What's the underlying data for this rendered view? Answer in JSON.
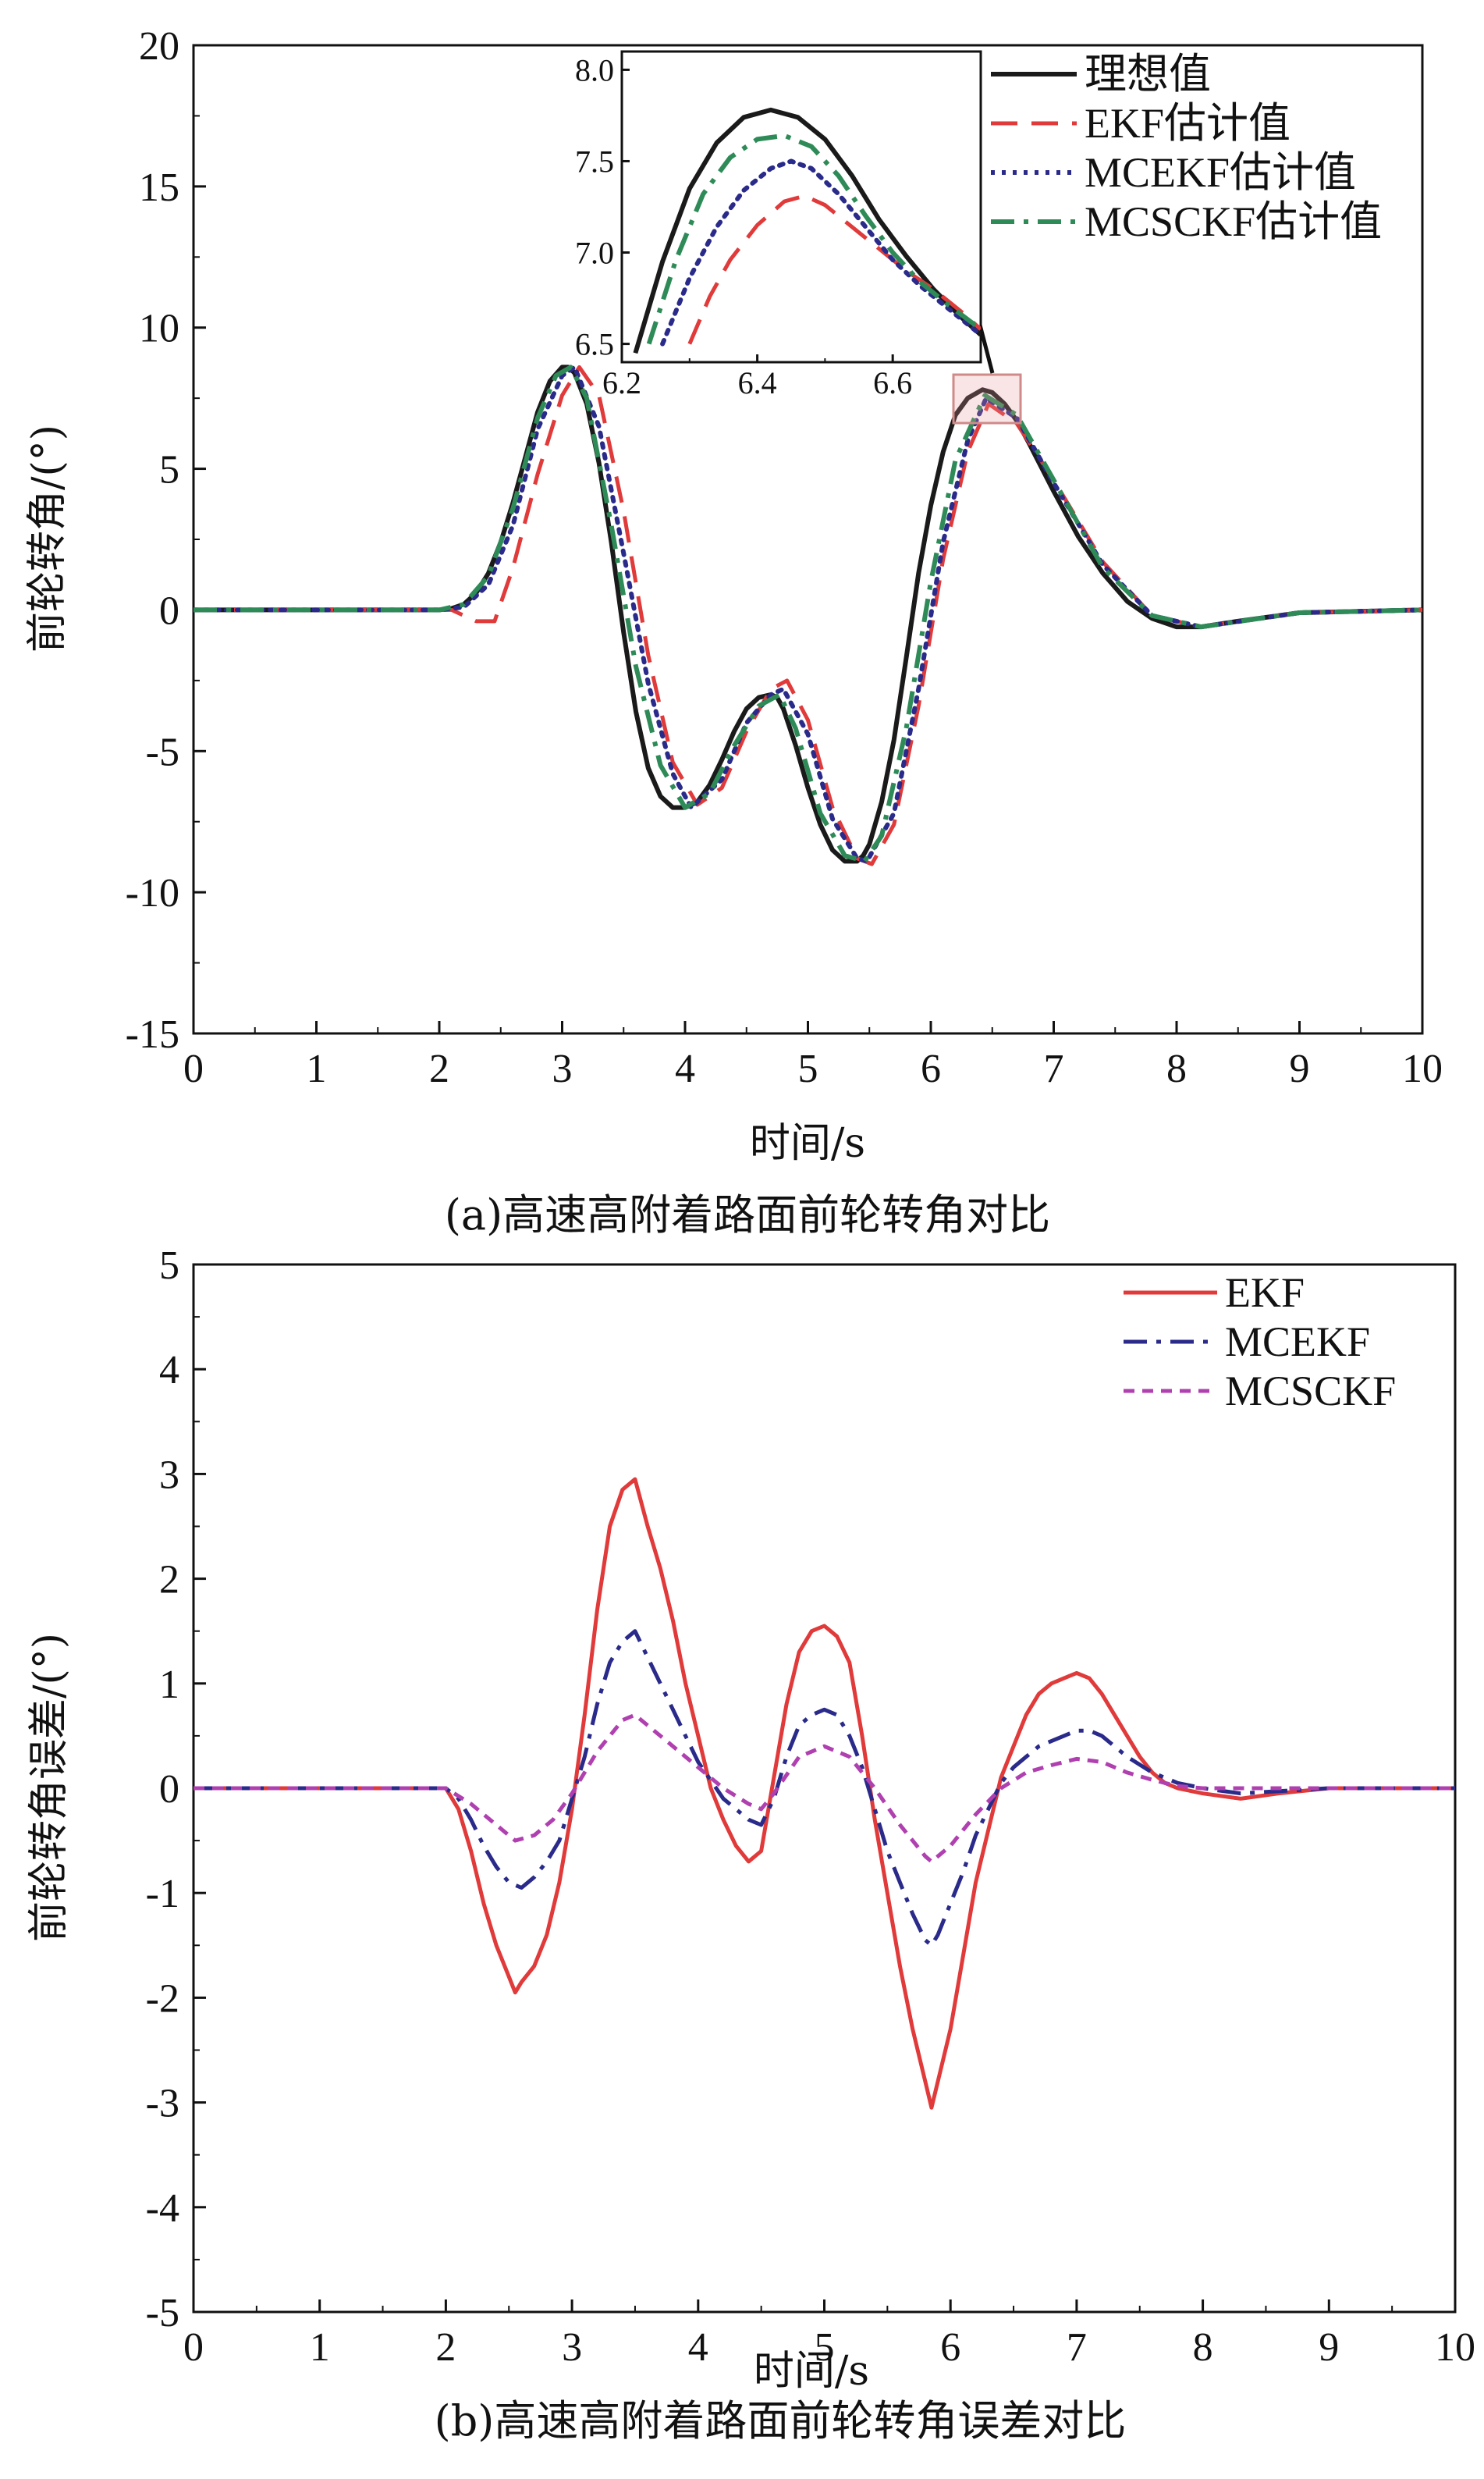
{
  "chart_data": [
    {
      "type": "line",
      "caption": "(a)高速高附着路面前轮转角对比",
      "xlabel": "时间/s",
      "ylabel": "前轮转角/(°)",
      "xlim": [
        0,
        10
      ],
      "ylim": [
        -15,
        20
      ],
      "xticks": [
        0,
        1,
        2,
        3,
        4,
        5,
        6,
        7,
        8,
        9,
        10
      ],
      "yticks": [
        20,
        15,
        10,
        5,
        0,
        -5,
        -10,
        -15
      ],
      "grid": false,
      "legend_position": "top-right",
      "colors": {
        "ideal": "#1a1a1a",
        "ekf": "#e03a3a",
        "mcekf": "#2a2a8a",
        "mcsckf": "#2e8b57"
      },
      "series": [
        {
          "name": "理想值",
          "style": "solid",
          "x": [
            0,
            1.0,
            2.0,
            2.1,
            2.2,
            2.3,
            2.4,
            2.5,
            2.6,
            2.7,
            2.8,
            2.9,
            3.0,
            3.05,
            3.1,
            3.2,
            3.3,
            3.4,
            3.5,
            3.6,
            3.7,
            3.8,
            3.9,
            4.0,
            4.1,
            4.2,
            4.3,
            4.4,
            4.5,
            4.6,
            4.7,
            4.75,
            4.8,
            4.9,
            5.0,
            5.1,
            5.2,
            5.3,
            5.4,
            5.45,
            5.5,
            5.6,
            5.7,
            5.8,
            5.9,
            6.0,
            6.1,
            6.2,
            6.3,
            6.42,
            6.5,
            6.6,
            6.7,
            6.8,
            7.0,
            7.2,
            7.4,
            7.6,
            7.8,
            8.0,
            8.2,
            8.5,
            9.0,
            10.0
          ],
          "y": [
            0,
            0,
            0,
            0.05,
            0.2,
            0.6,
            1.3,
            2.4,
            3.8,
            5.4,
            7.0,
            8.1,
            8.6,
            8.6,
            8.4,
            7.3,
            5.2,
            2.4,
            -0.8,
            -3.6,
            -5.6,
            -6.6,
            -7.0,
            -7.0,
            -6.8,
            -6.2,
            -5.3,
            -4.3,
            -3.5,
            -3.1,
            -3.0,
            -3.1,
            -3.5,
            -4.8,
            -6.3,
            -7.6,
            -8.5,
            -8.9,
            -8.9,
            -8.7,
            -8.3,
            -6.8,
            -4.6,
            -1.7,
            1.3,
            3.7,
            5.6,
            6.9,
            7.5,
            7.8,
            7.7,
            7.3,
            6.7,
            5.9,
            4.2,
            2.6,
            1.3,
            0.3,
            -0.3,
            -0.6,
            -0.6,
            -0.4,
            -0.1,
            0
          ]
        },
        {
          "name": "EKF估计值",
          "style": "dashed",
          "x": [
            0,
            2.1,
            2.3,
            2.45,
            2.6,
            2.8,
            3.0,
            3.14,
            3.3,
            3.5,
            3.7,
            3.9,
            4.1,
            4.3,
            4.5,
            4.7,
            4.83,
            5.0,
            5.2,
            5.4,
            5.52,
            5.7,
            5.9,
            6.1,
            6.3,
            6.47,
            6.7,
            7.0,
            7.4,
            7.8,
            8.2,
            9.0,
            10.0
          ],
          "y": [
            0,
            0,
            -0.4,
            -0.4,
            1.5,
            4.8,
            7.6,
            8.6,
            7.6,
            3.5,
            -1.6,
            -5.4,
            -6.9,
            -6.3,
            -4.3,
            -2.8,
            -2.5,
            -3.9,
            -7.0,
            -8.8,
            -9.0,
            -7.6,
            -3.4,
            1.8,
            5.6,
            7.3,
            6.6,
            4.6,
            1.7,
            -0.2,
            -0.6,
            -0.1,
            0
          ]
        },
        {
          "name": "MCEKF估计值",
          "style": "dotted",
          "x": [
            0,
            2.0,
            2.2,
            2.4,
            2.6,
            2.8,
            3.0,
            3.1,
            3.3,
            3.5,
            3.7,
            3.9,
            4.05,
            4.3,
            4.5,
            4.7,
            4.8,
            5.0,
            5.2,
            5.4,
            5.48,
            5.7,
            5.9,
            6.1,
            6.3,
            6.45,
            6.7,
            7.0,
            7.4,
            7.8,
            8.2,
            9.0,
            10.0
          ],
          "y": [
            0,
            0,
            0.1,
            0.9,
            3.0,
            6.4,
            8.3,
            8.6,
            6.5,
            2.0,
            -2.6,
            -5.8,
            -7.0,
            -6.0,
            -4.0,
            -3.0,
            -2.8,
            -4.4,
            -7.4,
            -8.8,
            -8.9,
            -7.2,
            -2.8,
            2.4,
            6.0,
            7.5,
            6.8,
            4.5,
            1.6,
            -0.2,
            -0.6,
            -0.1,
            0
          ]
        },
        {
          "name": "MCSCKF估计值",
          "style": "dashdot",
          "x": [
            0,
            2.0,
            2.2,
            2.4,
            2.6,
            2.8,
            2.95,
            3.07,
            3.2,
            3.4,
            3.6,
            3.8,
            4.0,
            4.2,
            4.4,
            4.6,
            4.77,
            4.9,
            5.1,
            5.3,
            5.46,
            5.6,
            5.8,
            6.0,
            6.2,
            6.44,
            6.7,
            7.0,
            7.4,
            7.8,
            8.2,
            9.0,
            10.0
          ],
          "y": [
            0,
            0,
            0.2,
            1.2,
            3.6,
            6.8,
            8.3,
            8.6,
            7.5,
            3.0,
            -2.0,
            -5.5,
            -7.0,
            -6.5,
            -4.8,
            -3.4,
            -3.0,
            -4.2,
            -7.2,
            -8.7,
            -8.9,
            -8.0,
            -4.2,
            1.0,
            5.3,
            7.6,
            6.9,
            4.6,
            1.5,
            -0.2,
            -0.6,
            -0.1,
            0
          ]
        }
      ],
      "inset": {
        "xlim": [
          6.2,
          6.73
        ],
        "ylim": [
          6.4,
          8.1
        ],
        "xticks": [
          6.2,
          6.4,
          6.6
        ],
        "yticks": [
          8.0,
          7.5,
          7.0,
          6.5
        ],
        "series": [
          {
            "name": "理想值",
            "x": [
              6.22,
              6.26,
              6.3,
              6.34,
              6.38,
              6.42,
              6.46,
              6.5,
              6.54,
              6.58,
              6.62,
              6.66,
              6.7,
              6.73
            ],
            "y": [
              6.45,
              6.95,
              7.35,
              7.6,
              7.74,
              7.78,
              7.74,
              7.62,
              7.42,
              7.18,
              6.98,
              6.8,
              6.65,
              6.55
            ]
          },
          {
            "name": "EKF估计值",
            "x": [
              6.3,
              6.33,
              6.36,
              6.4,
              6.44,
              6.47,
              6.5,
              6.54,
              6.58,
              6.62,
              6.66,
              6.7,
              6.73
            ],
            "y": [
              6.5,
              6.76,
              6.96,
              7.15,
              7.28,
              7.31,
              7.26,
              7.14,
              7.02,
              6.9,
              6.8,
              6.68,
              6.58
            ]
          },
          {
            "name": "MCEKF估计值",
            "x": [
              6.26,
              6.3,
              6.34,
              6.38,
              6.42,
              6.45,
              6.48,
              6.52,
              6.56,
              6.6,
              6.64,
              6.68,
              6.73
            ],
            "y": [
              6.5,
              6.86,
              7.14,
              7.34,
              7.46,
              7.5,
              7.46,
              7.32,
              7.14,
              6.96,
              6.82,
              6.7,
              6.55
            ]
          },
          {
            "name": "MCSCKF估计值",
            "x": [
              6.24,
              6.28,
              6.32,
              6.36,
              6.4,
              6.44,
              6.48,
              6.52,
              6.56,
              6.6,
              6.64,
              6.68,
              6.73
            ],
            "y": [
              6.5,
              6.96,
              7.32,
              7.52,
              7.62,
              7.64,
              7.58,
              7.42,
              7.2,
              7.0,
              6.84,
              6.72,
              6.58
            ]
          }
        ]
      }
    },
    {
      "type": "line",
      "caption": "(b)高速高附着路面前轮转角误差对比",
      "xlabel": "时间/s",
      "ylabel": "前轮转角误差/(°)",
      "xlim": [
        0,
        10
      ],
      "ylim": [
        -5,
        5
      ],
      "xticks": [
        0,
        1,
        2,
        3,
        4,
        5,
        6,
        7,
        8,
        9,
        10
      ],
      "yticks": [
        5,
        4,
        3,
        2,
        1,
        0,
        -1,
        -2,
        -3,
        -4,
        -5
      ],
      "grid": false,
      "legend_position": "top-right",
      "colors": {
        "ekf": "#e03a3a",
        "mcekf": "#2a2a8a",
        "mcsckf": "#b040b0"
      },
      "series": [
        {
          "name": "EKF",
          "style": "solid",
          "x": [
            0,
            1.0,
            2.0,
            2.1,
            2.2,
            2.3,
            2.4,
            2.5,
            2.55,
            2.6,
            2.7,
            2.8,
            2.9,
            3.0,
            3.1,
            3.2,
            3.3,
            3.4,
            3.5,
            3.6,
            3.7,
            3.8,
            3.9,
            4.0,
            4.1,
            4.2,
            4.3,
            4.4,
            4.5,
            4.6,
            4.7,
            4.8,
            4.9,
            5.0,
            5.1,
            5.2,
            5.3,
            5.4,
            5.5,
            5.6,
            5.7,
            5.8,
            5.85,
            5.9,
            6.0,
            6.1,
            6.2,
            6.3,
            6.4,
            6.5,
            6.6,
            6.7,
            6.8,
            6.9,
            7.0,
            7.1,
            7.2,
            7.3,
            7.4,
            7.5,
            7.6,
            7.7,
            7.8,
            8.0,
            8.3,
            8.6,
            9.0,
            10.0
          ],
          "y": [
            0,
            0,
            0,
            -0.2,
            -0.6,
            -1.1,
            -1.5,
            -1.8,
            -1.95,
            -1.85,
            -1.7,
            -1.4,
            -0.9,
            -0.2,
            0.7,
            1.7,
            2.5,
            2.85,
            2.95,
            2.5,
            2.1,
            1.6,
            1.0,
            0.5,
            0.0,
            -0.3,
            -0.55,
            -0.7,
            -0.6,
            0.1,
            0.8,
            1.3,
            1.5,
            1.55,
            1.45,
            1.2,
            0.5,
            -0.3,
            -1.0,
            -1.7,
            -2.3,
            -2.8,
            -3.05,
            -2.8,
            -2.3,
            -1.6,
            -0.9,
            -0.4,
            0.1,
            0.4,
            0.7,
            0.9,
            1.0,
            1.05,
            1.1,
            1.05,
            0.9,
            0.7,
            0.5,
            0.3,
            0.15,
            0.05,
            0.0,
            -0.05,
            -0.1,
            -0.05,
            0,
            0
          ]
        },
        {
          "name": "MCEKF",
          "style": "dashdot",
          "x": [
            0,
            1.0,
            2.0,
            2.1,
            2.2,
            2.3,
            2.4,
            2.5,
            2.6,
            2.7,
            2.8,
            2.9,
            3.0,
            3.1,
            3.2,
            3.3,
            3.4,
            3.5,
            3.6,
            3.7,
            3.8,
            3.9,
            4.0,
            4.2,
            4.4,
            4.5,
            4.6,
            4.7,
            4.8,
            4.9,
            5.0,
            5.1,
            5.2,
            5.3,
            5.4,
            5.5,
            5.6,
            5.7,
            5.8,
            5.85,
            5.9,
            6.0,
            6.1,
            6.2,
            6.3,
            6.4,
            6.5,
            6.6,
            6.7,
            6.8,
            6.9,
            7.0,
            7.1,
            7.2,
            7.4,
            7.6,
            7.8,
            8.0,
            8.3,
            9.0,
            10.0
          ],
          "y": [
            0,
            0,
            0,
            -0.1,
            -0.3,
            -0.55,
            -0.75,
            -0.9,
            -0.95,
            -0.85,
            -0.7,
            -0.5,
            -0.1,
            0.3,
            0.8,
            1.2,
            1.4,
            1.5,
            1.25,
            1.0,
            0.75,
            0.5,
            0.25,
            -0.1,
            -0.3,
            -0.35,
            -0.1,
            0.3,
            0.6,
            0.7,
            0.75,
            0.7,
            0.5,
            0.2,
            -0.2,
            -0.6,
            -0.9,
            -1.2,
            -1.45,
            -1.5,
            -1.4,
            -1.1,
            -0.8,
            -0.45,
            -0.2,
            0.05,
            0.2,
            0.3,
            0.4,
            0.45,
            0.5,
            0.55,
            0.55,
            0.5,
            0.3,
            0.15,
            0.05,
            0.0,
            -0.05,
            0,
            0
          ]
        },
        {
          "name": "MCSCKF",
          "style": "dashed",
          "x": [
            0,
            1.0,
            2.0,
            2.2,
            2.4,
            2.55,
            2.7,
            2.85,
            3.0,
            3.2,
            3.4,
            3.5,
            3.6,
            3.8,
            4.0,
            4.2,
            4.4,
            4.5,
            4.6,
            4.8,
            5.0,
            5.2,
            5.4,
            5.6,
            5.8,
            5.85,
            6.0,
            6.2,
            6.4,
            6.6,
            6.8,
            7.0,
            7.2,
            7.4,
            7.6,
            7.8,
            8.0,
            9.0,
            10.0
          ],
          "y": [
            0,
            0,
            0,
            -0.15,
            -0.35,
            -0.5,
            -0.45,
            -0.3,
            -0.05,
            0.35,
            0.65,
            0.7,
            0.6,
            0.4,
            0.2,
            0.0,
            -0.15,
            -0.2,
            -0.05,
            0.3,
            0.4,
            0.3,
            0.0,
            -0.35,
            -0.65,
            -0.7,
            -0.55,
            -0.25,
            0.0,
            0.15,
            0.22,
            0.28,
            0.25,
            0.15,
            0.08,
            0.02,
            0.0,
            0,
            0
          ]
        }
      ]
    }
  ]
}
